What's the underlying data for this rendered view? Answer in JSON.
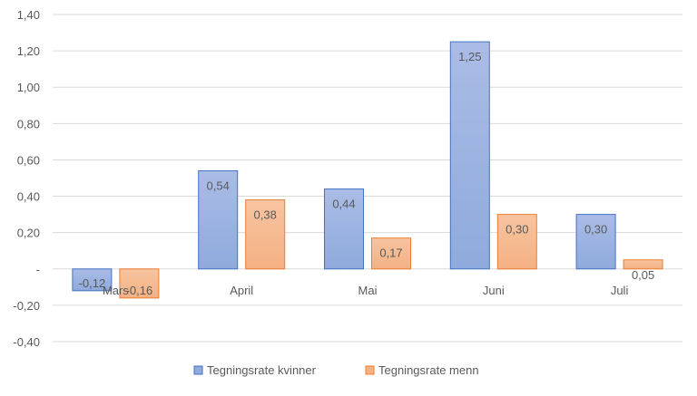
{
  "chart_data": {
    "type": "bar",
    "categories": [
      "Mars",
      "April",
      "Mai",
      "Juni",
      "Juli"
    ],
    "series": [
      {
        "name": "Tegningsrate kvinner",
        "values": [
          -0.12,
          0.54,
          0.44,
          1.25,
          0.3
        ],
        "labels": [
          "-0,12",
          "0,54",
          "0,44",
          "1,25",
          "0,30"
        ],
        "color": "#8faadc",
        "color_light": "#aabce6",
        "border": "#4472c4"
      },
      {
        "name": "Tegningsrate menn",
        "values": [
          -0.16,
          0.38,
          0.17,
          0.3,
          0.05
        ],
        "labels": [
          "-0,16",
          "0,38",
          "0,17",
          "0,30",
          "0,05"
        ],
        "color": "#f4b183",
        "color_light": "#f7c4a0",
        "border": "#ed7d31"
      }
    ],
    "yticks": [
      1.4,
      1.2,
      1.0,
      0.8,
      0.6,
      0.4,
      0.2,
      0,
      -0.2,
      -0.4
    ],
    "ytick_labels": [
      "1,40",
      "1,20",
      "1,00",
      "0,80",
      "0,60",
      "0,40",
      "0,20",
      "-",
      "-0,20",
      "-0,40"
    ],
    "ylim": [
      -0.4,
      1.4
    ],
    "grid": true,
    "legend_position": "bottom"
  }
}
